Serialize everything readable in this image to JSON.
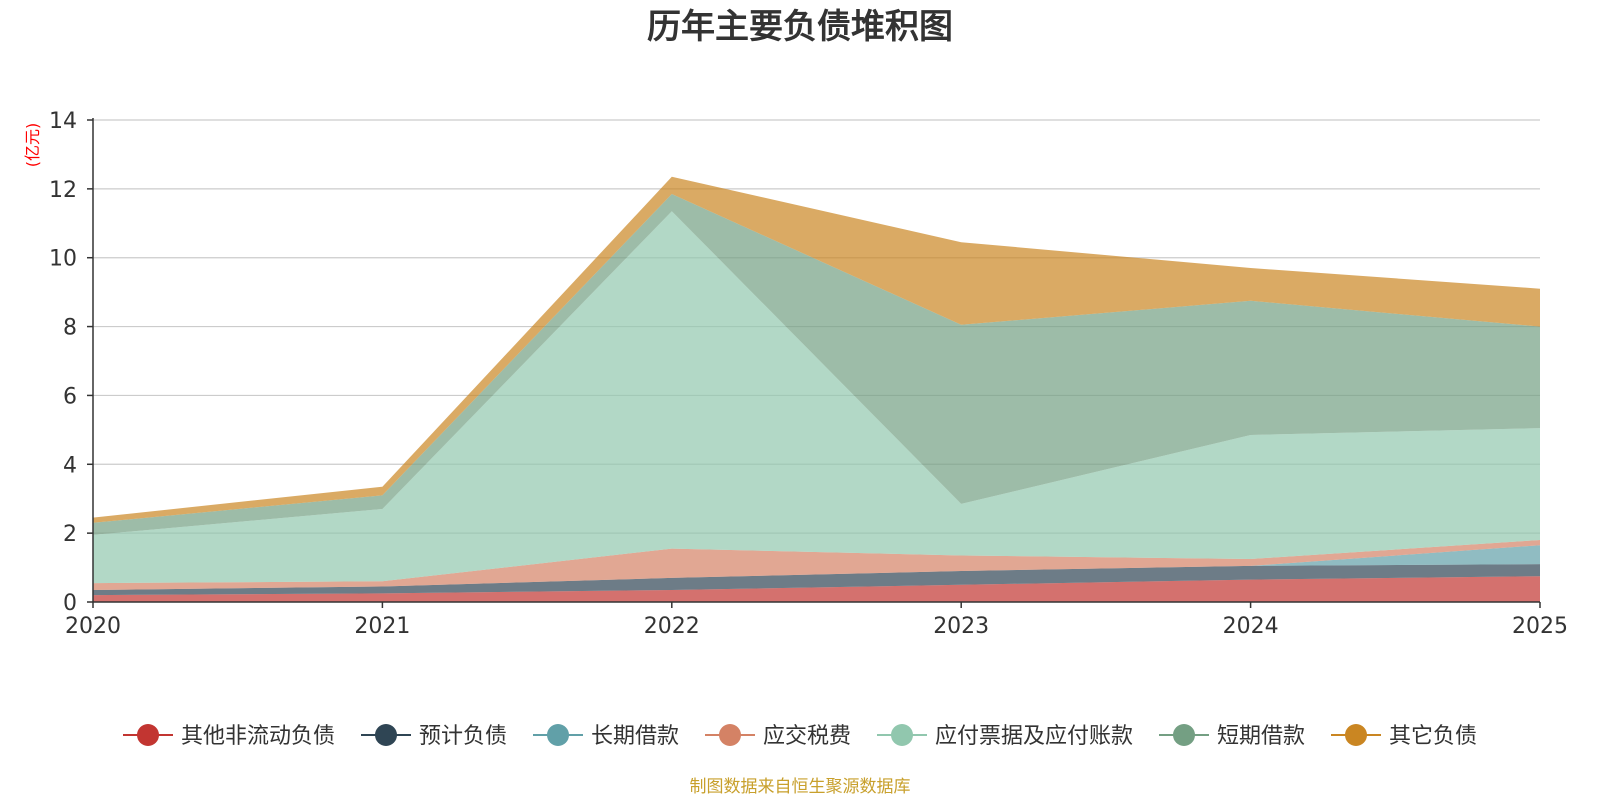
{
  "chart_data": {
    "type": "area",
    "stacked": true,
    "title": "历年主要负债堆积图",
    "unit_label": "(亿元)",
    "categories": [
      "2020",
      "2021",
      "2022",
      "2023",
      "2024",
      "2025"
    ],
    "ylim": [
      0,
      14
    ],
    "yticks": [
      0,
      2,
      4,
      6,
      8,
      10,
      12,
      14
    ],
    "ytick_labels": [
      "0",
      "2",
      "4",
      "6",
      "8",
      "10",
      "12",
      "14"
    ],
    "grid": true,
    "legend_position": "bottom",
    "series": [
      {
        "name": "其他非流动负债",
        "color": "#c23531",
        "values": [
          0.2,
          0.25,
          0.35,
          0.5,
          0.65,
          0.75
        ]
      },
      {
        "name": "预计负债",
        "color": "#2f4554",
        "values": [
          0.15,
          0.2,
          0.35,
          0.4,
          0.4,
          0.35
        ]
      },
      {
        "name": "长期借款",
        "color": "#61a0a8",
        "values": [
          0.0,
          0.0,
          0.0,
          0.0,
          0.0,
          0.55
        ]
      },
      {
        "name": "应交税费",
        "color": "#d48265",
        "values": [
          0.2,
          0.15,
          0.85,
          0.45,
          0.2,
          0.15
        ]
      },
      {
        "name": "应付票据及应付账款",
        "color": "#91c7ae",
        "values": [
          1.4,
          2.1,
          9.8,
          1.5,
          3.6,
          3.25
        ]
      },
      {
        "name": "短期借款",
        "color": "#749f83",
        "values": [
          0.35,
          0.4,
          0.5,
          5.2,
          3.9,
          2.95
        ]
      },
      {
        "name": "其它负债",
        "color": "#ca8622",
        "values": [
          0.15,
          0.25,
          0.5,
          2.4,
          0.95,
          1.1
        ]
      }
    ]
  },
  "colors": {
    "title": "#333333",
    "axis": "#333333",
    "grid": "#cccccc",
    "unit": "#ff0000",
    "source": "#c8a02c"
  },
  "source_note": "制图数据来自恒生聚源数据库"
}
